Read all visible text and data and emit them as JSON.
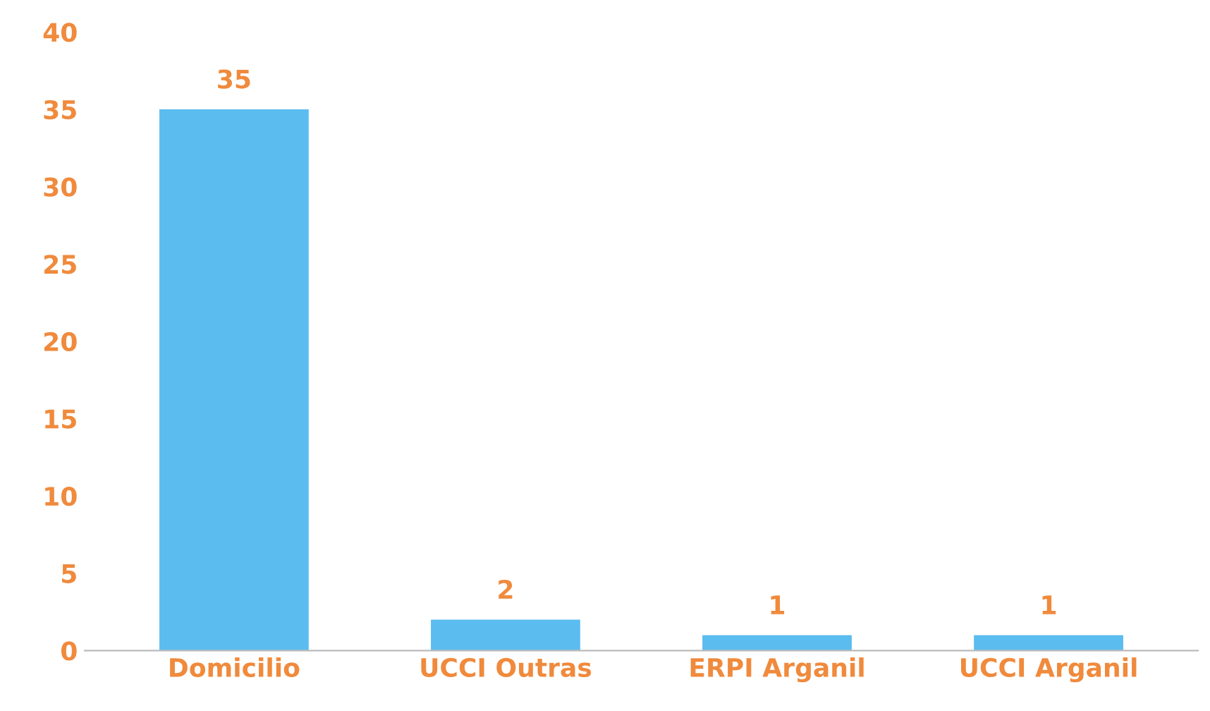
{
  "chart_data": {
    "type": "bar",
    "categories": [
      "Domicilio",
      "UCCI Outras",
      "ERPI Arganil",
      "UCCI Arganil"
    ],
    "values": [
      35,
      2,
      1,
      1
    ],
    "color": "#5bbcef",
    "ylim": [
      0,
      40
    ],
    "yticks": [
      0,
      5,
      10,
      15,
      20,
      25,
      30,
      35,
      40
    ],
    "data_labels": true,
    "grid": false
  }
}
